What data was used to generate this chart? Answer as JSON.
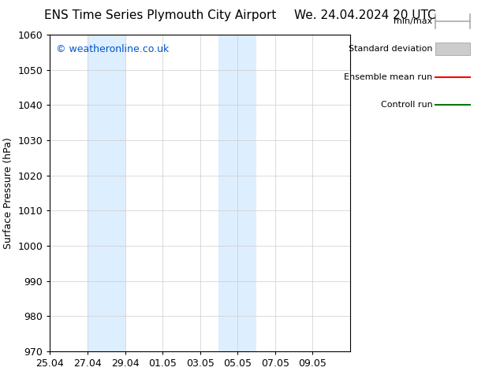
{
  "title_left": "ENS Time Series Plymouth City Airport",
  "title_right": "We. 24.04.2024 20 UTC",
  "ylabel": "Surface Pressure (hPa)",
  "ylim": [
    970,
    1060
  ],
  "yticks": [
    970,
    980,
    990,
    1000,
    1010,
    1020,
    1030,
    1040,
    1050,
    1060
  ],
  "xtick_labels": [
    "25.04",
    "27.04",
    "29.04",
    "01.05",
    "03.05",
    "05.05",
    "07.05",
    "09.05"
  ],
  "xtick_positions": [
    0,
    2,
    4,
    6,
    8,
    10,
    12,
    14
  ],
  "xlim": [
    0,
    16
  ],
  "shaded_regions": [
    {
      "xmin": 2,
      "xmax": 4,
      "color": "#ddeeff"
    },
    {
      "xmin": 9,
      "xmax": 11,
      "color": "#ddeeff"
    }
  ],
  "watermark": "© weatheronline.co.uk",
  "watermark_color": "#0055cc",
  "legend_entries": [
    {
      "label": "min/max",
      "color": "#aaaaaa",
      "style": "line_with_caps"
    },
    {
      "label": "Standard deviation",
      "color": "#cccccc",
      "style": "filled_bar"
    },
    {
      "label": "Ensemble mean run",
      "color": "#ff0000",
      "style": "line"
    },
    {
      "label": "Controll run",
      "color": "#007700",
      "style": "line"
    }
  ],
  "background_color": "#ffffff",
  "grid_color": "#cccccc",
  "font_size_title": 11,
  "font_size_axis": 9,
  "font_size_legend": 8,
  "font_size_watermark": 9,
  "font_family": "DejaVu Sans"
}
